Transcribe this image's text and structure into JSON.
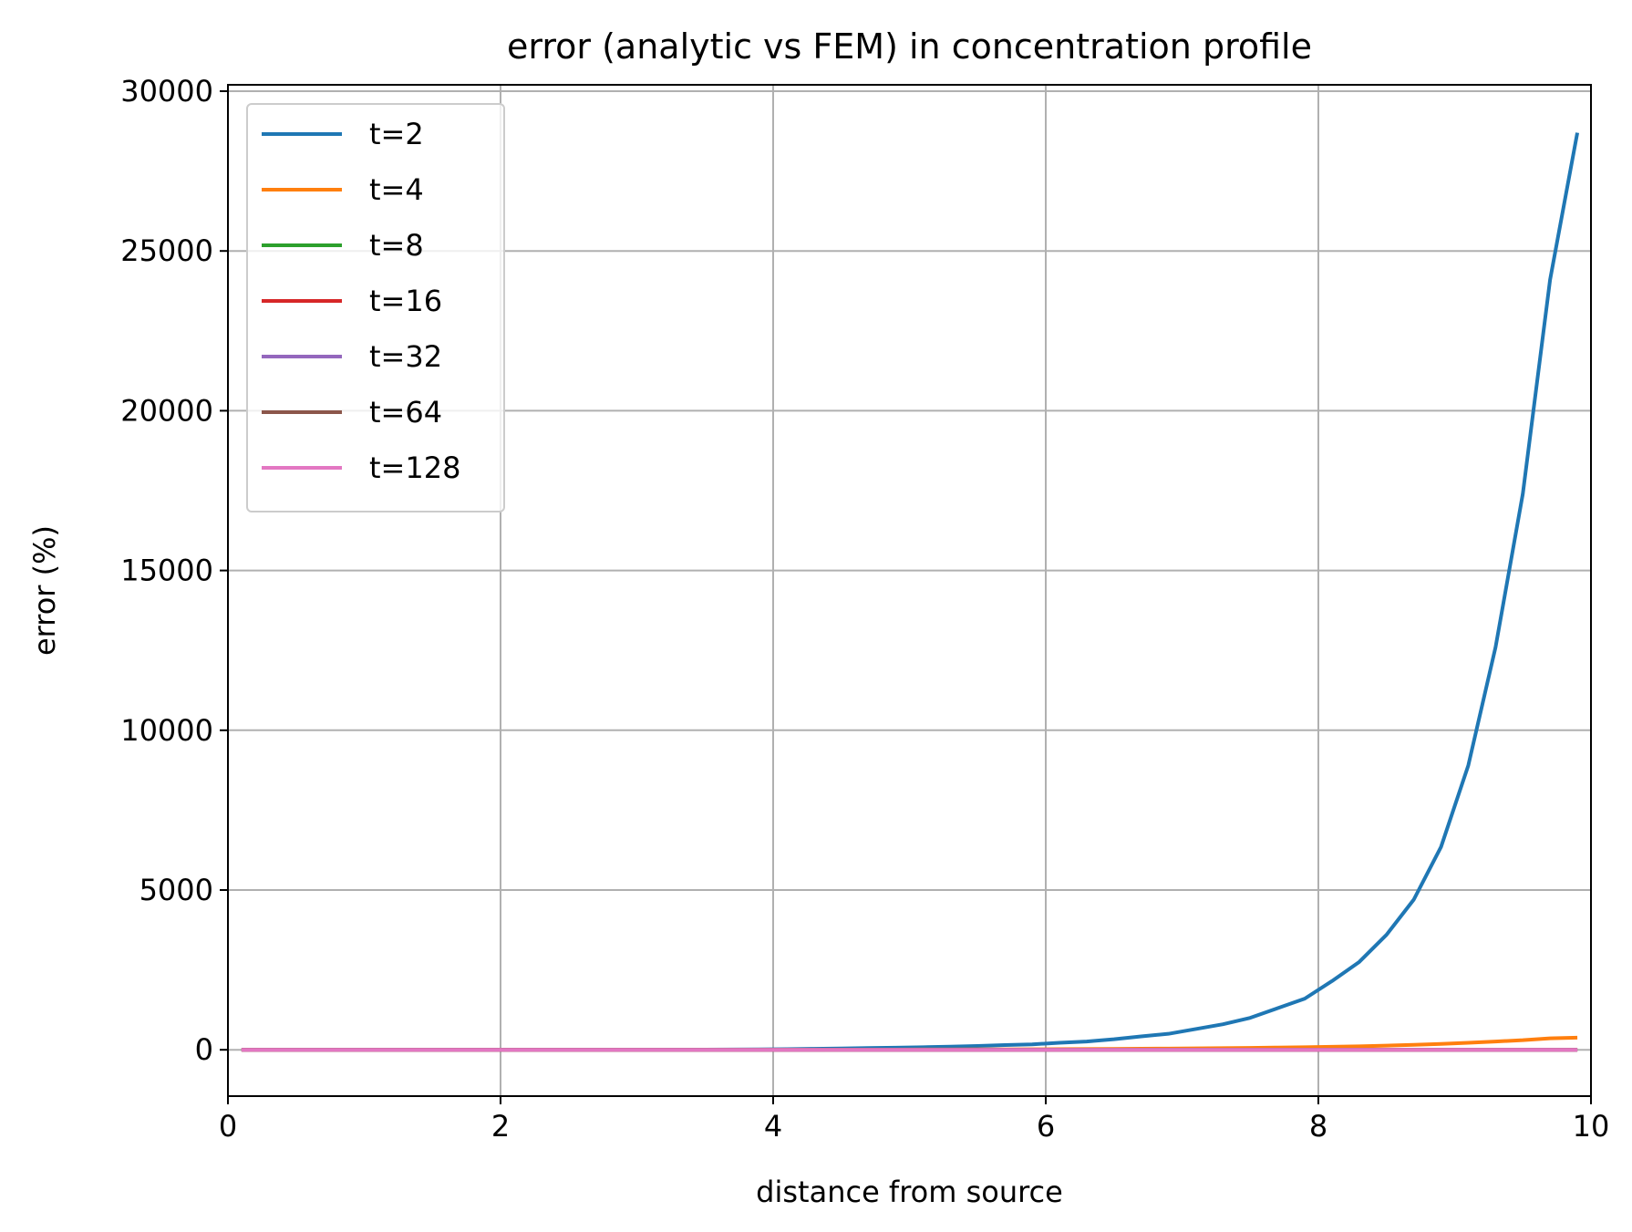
{
  "chart_data": {
    "type": "line",
    "title": "error (analytic vs FEM) in concentration profile",
    "xlabel": "distance from source",
    "ylabel": "error (%)",
    "xlim": [
      0,
      10
    ],
    "ylim": [
      -1450,
      30200
    ],
    "xticks": [
      0,
      2,
      4,
      6,
      8,
      10
    ],
    "xtick_labels": [
      "0",
      "2",
      "4",
      "6",
      "8",
      "10"
    ],
    "yticks": [
      0,
      5000,
      10000,
      15000,
      20000,
      25000,
      30000
    ],
    "ytick_labels": [
      "0",
      "5000",
      "10000",
      "15000",
      "20000",
      "25000",
      "30000"
    ],
    "grid": true,
    "legend_position": "upper-left",
    "x": [
      0.1,
      0.3,
      0.5,
      0.7,
      0.9,
      1.1,
      1.3,
      1.5,
      1.7,
      1.9,
      2.1,
      2.3,
      2.5,
      2.7,
      2.9,
      3.1,
      3.3,
      3.5,
      3.7,
      3.9,
      4.1,
      4.3,
      4.5,
      4.7,
      4.9,
      5.1,
      5.3,
      5.5,
      5.7,
      5.9,
      6.1,
      6.3,
      6.5,
      6.7,
      6.9,
      7.1,
      7.3,
      7.5,
      7.7,
      7.9,
      8.1,
      8.3,
      8.5,
      8.7,
      8.9,
      9.1,
      9.3,
      9.5,
      9.7,
      9.9
    ],
    "series": [
      {
        "name": "t=2",
        "color": "#1f77b4",
        "values": [
          0,
          0,
          0,
          0,
          0,
          0,
          0,
          0,
          0,
          0,
          0,
          0,
          0,
          0,
          0,
          0,
          2,
          5,
          8,
          12,
          20,
          30,
          40,
          55,
          65,
          80,
          100,
          120,
          150,
          170,
          220,
          260,
          330,
          420,
          500,
          650,
          800,
          1000,
          1300,
          1600,
          2150,
          2750,
          3600,
          4700,
          6350,
          8900,
          12600,
          17400,
          24100,
          28700
        ]
      },
      {
        "name": "t=4",
        "color": "#ff7f0e",
        "values": [
          0,
          0,
          0,
          0,
          0,
          0,
          0,
          0,
          0,
          0,
          0,
          0,
          0,
          0,
          0,
          0,
          0,
          0,
          0,
          0,
          2,
          3,
          4,
          5,
          6,
          8,
          10,
          12,
          14,
          16,
          20,
          24,
          28,
          33,
          38,
          45,
          52,
          60,
          70,
          82,
          95,
          110,
          130,
          155,
          185,
          220,
          260,
          300,
          360,
          380
        ]
      },
      {
        "name": "t=8",
        "color": "#2ca02c",
        "values": [
          0,
          0,
          0,
          0,
          0,
          0,
          0,
          0,
          0,
          0,
          0,
          0,
          0,
          0,
          0,
          0,
          0,
          0,
          0,
          0,
          0,
          0,
          0,
          0,
          0,
          0,
          0,
          0,
          0,
          0,
          0,
          0,
          0,
          0,
          0,
          0,
          0,
          0,
          0,
          0,
          0,
          0,
          0,
          0,
          0,
          0,
          0,
          0,
          0,
          0
        ]
      },
      {
        "name": "t=16",
        "color": "#d62728",
        "values": [
          0,
          0,
          0,
          0,
          0,
          0,
          0,
          0,
          0,
          0,
          0,
          0,
          0,
          0,
          0,
          0,
          0,
          0,
          0,
          0,
          0,
          0,
          0,
          0,
          0,
          0,
          0,
          0,
          0,
          0,
          0,
          0,
          0,
          0,
          0,
          0,
          0,
          0,
          0,
          0,
          0,
          0,
          0,
          0,
          0,
          0,
          0,
          0,
          0,
          0
        ]
      },
      {
        "name": "t=32",
        "color": "#9467bd",
        "values": [
          0,
          0,
          0,
          0,
          0,
          0,
          0,
          0,
          0,
          0,
          0,
          0,
          0,
          0,
          0,
          0,
          0,
          0,
          0,
          0,
          0,
          0,
          0,
          0,
          0,
          0,
          0,
          0,
          0,
          0,
          0,
          0,
          0,
          0,
          0,
          0,
          0,
          0,
          0,
          0,
          0,
          0,
          0,
          0,
          0,
          0,
          0,
          0,
          0,
          0
        ]
      },
      {
        "name": "t=64",
        "color": "#8c564b",
        "values": [
          0,
          0,
          0,
          0,
          0,
          0,
          0,
          0,
          0,
          0,
          0,
          0,
          0,
          0,
          0,
          0,
          0,
          0,
          0,
          0,
          0,
          0,
          0,
          0,
          0,
          0,
          0,
          0,
          0,
          0,
          0,
          0,
          0,
          0,
          0,
          0,
          0,
          0,
          0,
          0,
          0,
          0,
          0,
          0,
          0,
          0,
          0,
          0,
          0,
          0
        ]
      },
      {
        "name": "t=128",
        "color": "#e377c2",
        "values": [
          0,
          0,
          0,
          0,
          0,
          0,
          0,
          0,
          0,
          0,
          0,
          0,
          0,
          0,
          0,
          0,
          0,
          0,
          0,
          0,
          0,
          0,
          0,
          0,
          0,
          0,
          0,
          0,
          0,
          0,
          0,
          0,
          0,
          0,
          0,
          0,
          0,
          0,
          0,
          0,
          0,
          0,
          0,
          0,
          0,
          0,
          0,
          0,
          0,
          0
        ]
      }
    ]
  }
}
